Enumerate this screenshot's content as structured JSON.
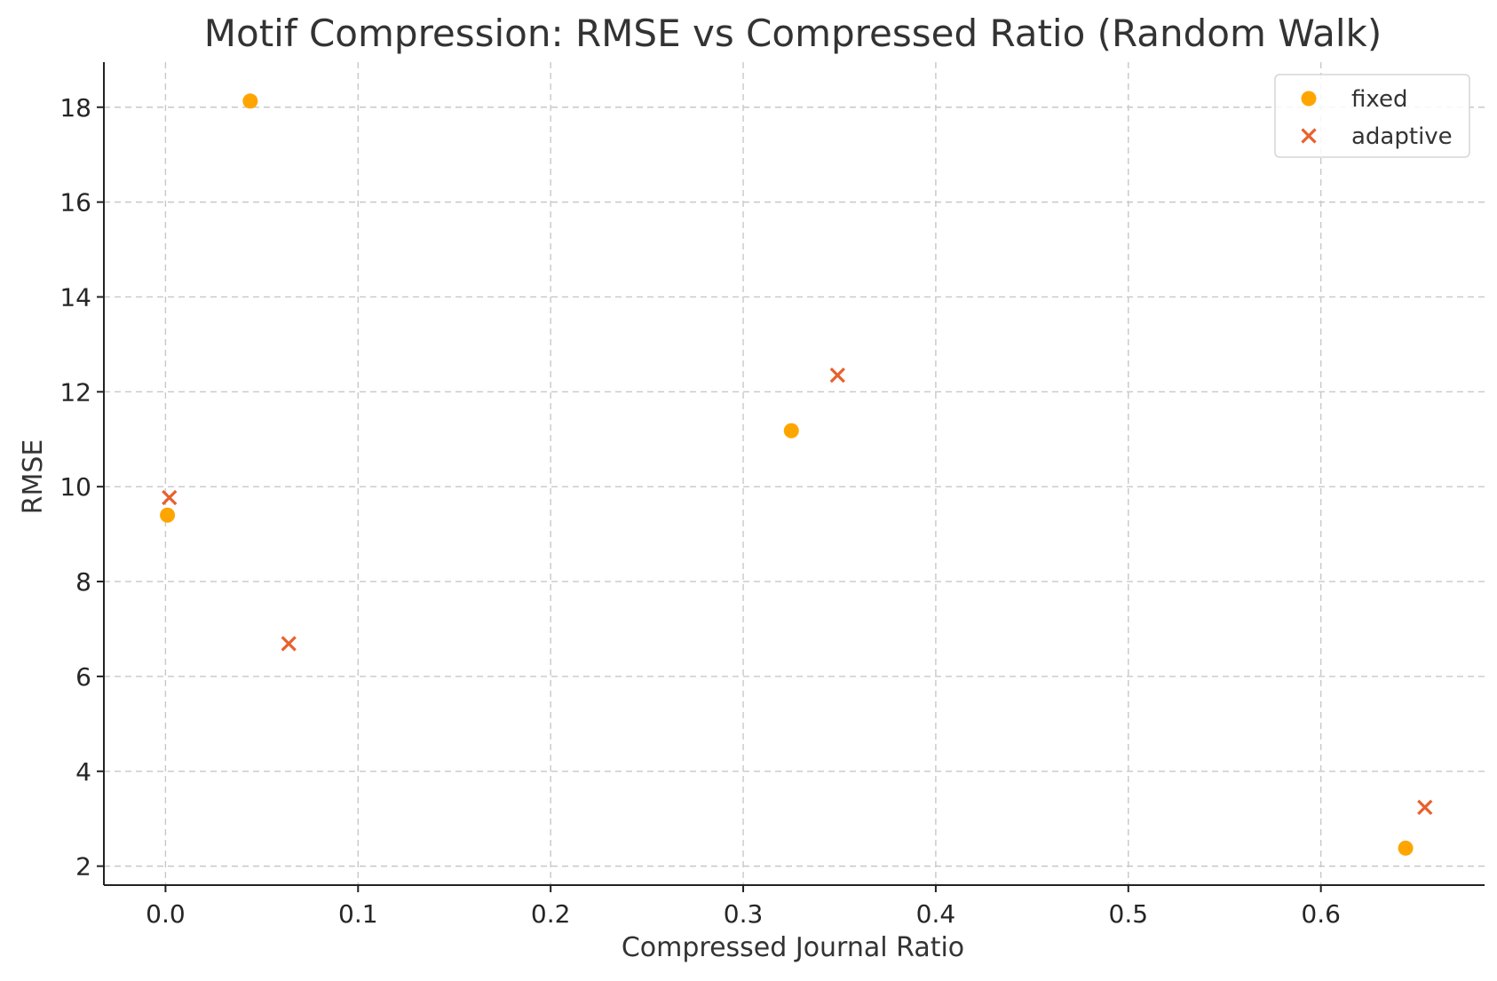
{
  "chart_data": {
    "type": "scatter",
    "title": "Motif Compression: RMSE vs Compressed Ratio (Random Walk)",
    "xlabel": "Compressed Journal Ratio",
    "ylabel": "RMSE",
    "xlim": [
      -0.032,
      0.685
    ],
    "ylim": [
      1.6,
      18.95
    ],
    "xticks": [
      0.0,
      0.1,
      0.2,
      0.3,
      0.4,
      0.5,
      0.6
    ],
    "xtick_labels": [
      "0.0",
      "0.1",
      "0.2",
      "0.3",
      "0.4",
      "0.5",
      "0.6"
    ],
    "yticks": [
      2,
      4,
      6,
      8,
      10,
      12,
      14,
      16,
      18
    ],
    "ytick_labels": [
      "2",
      "4",
      "6",
      "8",
      "10",
      "12",
      "14",
      "16",
      "18"
    ],
    "grid": true,
    "legend_position": "top-right",
    "series": [
      {
        "name": "fixed",
        "marker": "circle",
        "color": "#FFA500",
        "points": [
          {
            "x": 0.001,
            "y": 9.4
          },
          {
            "x": 0.044,
            "y": 18.13
          },
          {
            "x": 0.325,
            "y": 11.18
          },
          {
            "x": 0.644,
            "y": 2.38
          }
        ]
      },
      {
        "name": "adaptive",
        "marker": "x",
        "color": "#E8602C",
        "points": [
          {
            "x": 0.002,
            "y": 9.77
          },
          {
            "x": 0.064,
            "y": 6.69
          },
          {
            "x": 0.349,
            "y": 12.35
          },
          {
            "x": 0.654,
            "y": 3.24
          }
        ]
      }
    ]
  }
}
